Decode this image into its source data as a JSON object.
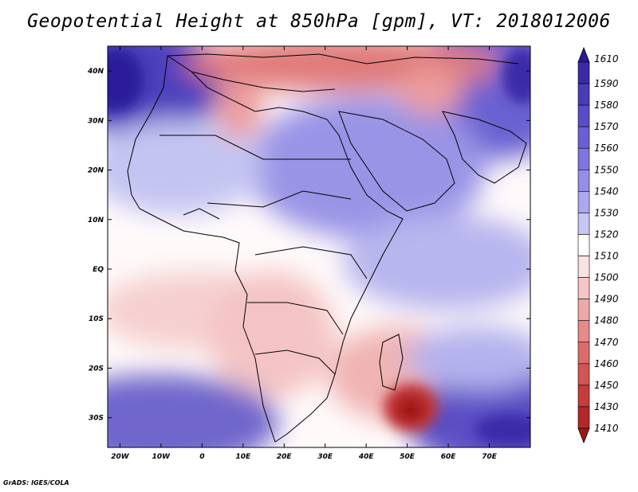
{
  "title": "Geopotential Height at 850hPa [gpm], VT: 2018012006",
  "footer": "GrADS: IGES/COLA",
  "map": {
    "projection": "latlon",
    "lon_range": [
      -23,
      80
    ],
    "lat_range": [
      -36,
      45
    ],
    "x_ticks": [
      "20W",
      "10W",
      "0",
      "10E",
      "20E",
      "30E",
      "40E",
      "50E",
      "60E",
      "70E"
    ],
    "y_ticks": [
      "40N",
      "30N",
      "20N",
      "10N",
      "EQ",
      "10S",
      "20S",
      "30S"
    ]
  },
  "colorbar": {
    "levels": [
      "1610",
      "1590",
      "1580",
      "1570",
      "1560",
      "1550",
      "1540",
      "1530",
      "1520",
      "1510",
      "1500",
      "1490",
      "1480",
      "1470",
      "1460",
      "1450",
      "1430",
      "1410"
    ],
    "top_color": "#2a1a9a",
    "bottom_color": "#a01818",
    "colors": [
      "#3b2aa8",
      "#4a3cb8",
      "#5a4cc8",
      "#6a60d4",
      "#7e76e0",
      "#958ee6",
      "#aba8ee",
      "#c6c6f4",
      "#ffffff",
      "#fbe2e2",
      "#f6c6c6",
      "#efa8a8",
      "#e68a8a",
      "#dc6c6c",
      "#d25454",
      "#c63c3c",
      "#b42828"
    ]
  }
}
